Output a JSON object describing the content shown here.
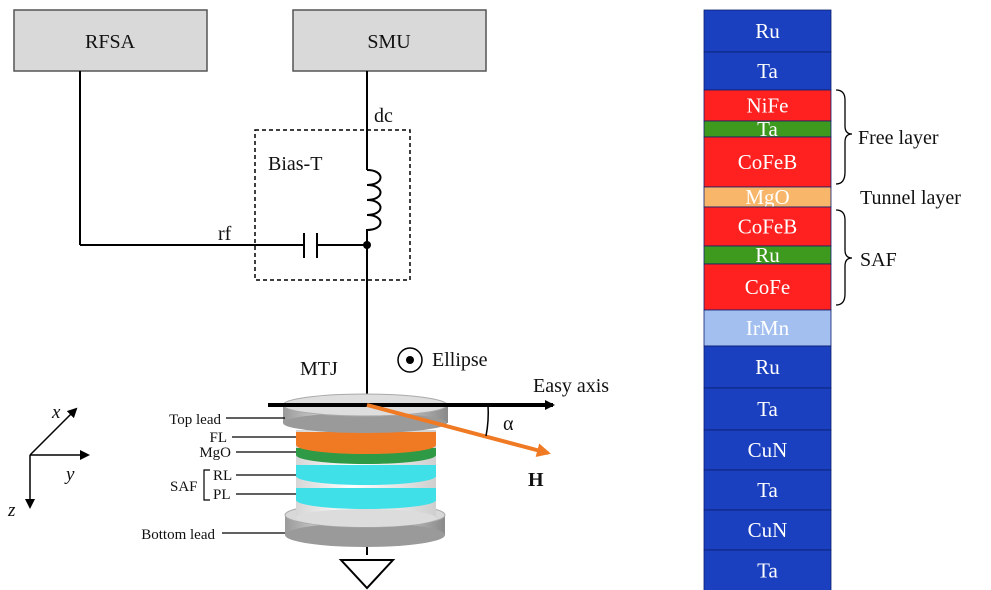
{
  "schematic": {
    "rfsa_label": "RFSA",
    "smu_label": "SMU",
    "dc_label": "dc",
    "rf_label": "rf",
    "bias_t_label": "Bias-T",
    "mtj_label": "MTJ",
    "ellipse_label": "Ellipse",
    "easy_axis_label": "Easy axis",
    "alpha_label": "α",
    "h_label": "H",
    "top_lead_label": "Top lead",
    "fl_label": "FL",
    "mgo_label": "MgO",
    "saf_label": "SAF",
    "rl_label": "RL",
    "pl_label": "PL",
    "bottom_lead_label": "Bottom lead",
    "axis_x": "x",
    "axis_y": "y",
    "axis_z": "z"
  },
  "layer_stack": {
    "layers": [
      {
        "name": "Ru",
        "color": "#1a3fbf"
      },
      {
        "name": "Ta",
        "color": "#1a3fbf"
      },
      {
        "name": "NiFe",
        "color": "#ff2020"
      },
      {
        "name": "Ta",
        "color": "#3e9a1e"
      },
      {
        "name": "CoFeB",
        "color": "#ff2020"
      },
      {
        "name": "MgO",
        "color": "#f7b66a"
      },
      {
        "name": "CoFeB",
        "color": "#ff2020"
      },
      {
        "name": "Ru",
        "color": "#3e9a1e"
      },
      {
        "name": "CoFe",
        "color": "#ff2020"
      },
      {
        "name": "IrMn",
        "color": "#a3bff0"
      },
      {
        "name": "Ru",
        "color": "#1a3fbf"
      },
      {
        "name": "Ta",
        "color": "#1a3fbf"
      },
      {
        "name": "CuN",
        "color": "#1a3fbf"
      },
      {
        "name": "Ta",
        "color": "#1a3fbf"
      },
      {
        "name": "CuN",
        "color": "#1a3fbf"
      },
      {
        "name": "Ta",
        "color": "#1a3fbf"
      }
    ],
    "free_layer_label": "Free layer",
    "tunnel_layer_label": "Tunnel layer",
    "saf_label": "SAF"
  },
  "colors": {
    "instrument_box": "#d9d9d9",
    "fl_orange": "#f07a24",
    "mgo_green": "#2f9a45",
    "rl_cyan": "#3fe0e8",
    "h_arrow": "#f07a24"
  }
}
